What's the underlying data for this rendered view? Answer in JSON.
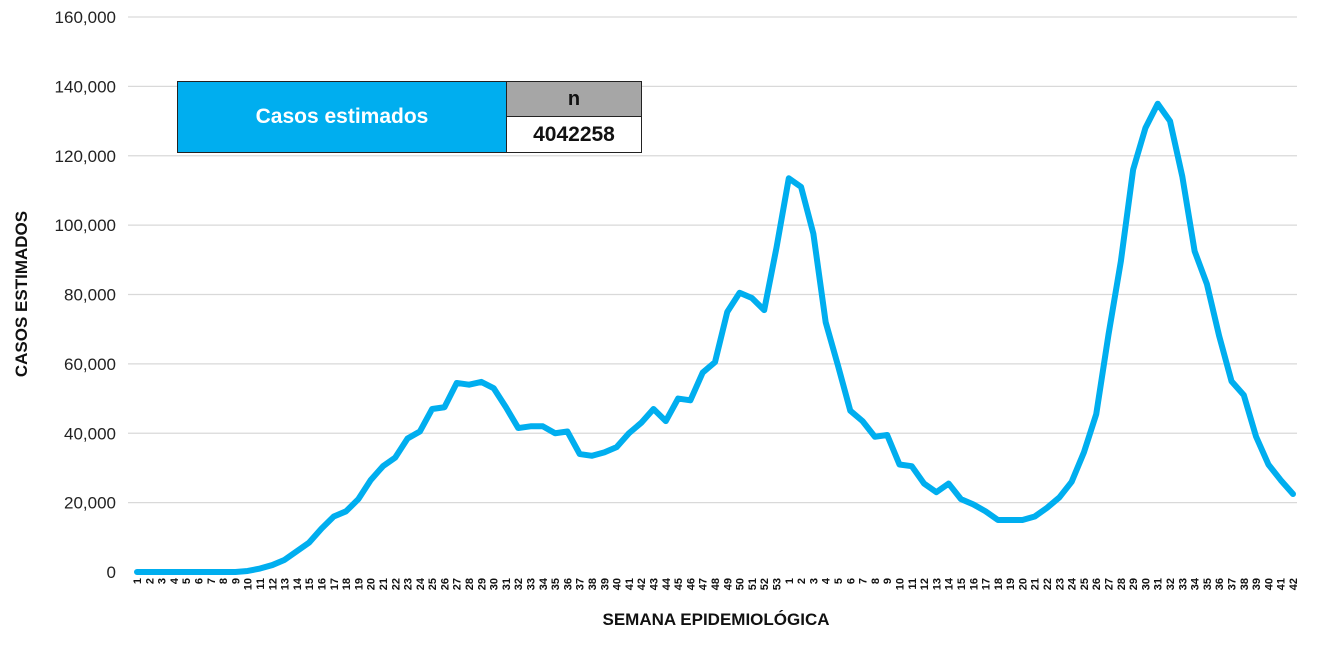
{
  "summary": {
    "label": "Casos estimados",
    "header": "n",
    "value": "4042258"
  },
  "colors": {
    "line": "#00aeef",
    "grid": "#d9d9d9",
    "summary_label_bg": "#00aeef",
    "summary_header_bg": "#a6a6a6"
  },
  "chart_data": {
    "type": "line",
    "xlabel": "SEMANA EPIDEMIOLÓGICA",
    "ylabel": "CASOS ESTIMADOS",
    "ylim": [
      0,
      160000
    ],
    "yticks": [
      0,
      20000,
      40000,
      60000,
      80000,
      100000,
      120000,
      140000,
      160000
    ],
    "ytick_labels": [
      "0",
      "20,000",
      "40,000",
      "60,000",
      "80,000",
      "100,000",
      "120,000",
      "140,000",
      "160,000"
    ],
    "grid": true,
    "categories": [
      "1",
      "2",
      "3",
      "4",
      "5",
      "6",
      "7",
      "8",
      "9",
      "10",
      "11",
      "12",
      "13",
      "14",
      "15",
      "16",
      "17",
      "18",
      "19",
      "20",
      "21",
      "22",
      "23",
      "24",
      "25",
      "26",
      "27",
      "28",
      "29",
      "30",
      "31",
      "32",
      "33",
      "34",
      "35",
      "36",
      "37",
      "38",
      "39",
      "40",
      "41",
      "42",
      "43",
      "44",
      "45",
      "46",
      "47",
      "48",
      "49",
      "50",
      "51",
      "52",
      "53",
      "1",
      "2",
      "3",
      "4",
      "5",
      "6",
      "7",
      "8",
      "9",
      "10",
      "11",
      "12",
      "13",
      "14",
      "15",
      "16",
      "17",
      "18",
      "19",
      "20",
      "21",
      "22",
      "23",
      "24",
      "25",
      "26",
      "27",
      "28",
      "29",
      "30",
      "31",
      "32",
      "33",
      "34",
      "35",
      "36",
      "37",
      "38",
      "39",
      "40",
      "41",
      "42"
    ],
    "series": [
      {
        "values": [
          0,
          0,
          0,
          0,
          0,
          0,
          0,
          0,
          0,
          300,
          1000,
          2000,
          3500,
          6000,
          8500,
          12500,
          16000,
          17500,
          21000,
          26500,
          30500,
          33000,
          38500,
          40500,
          47000,
          47500,
          54500,
          54000,
          54800,
          53000,
          47500,
          41500,
          42000,
          42000,
          40000,
          40500,
          34000,
          33500,
          34500,
          36000,
          40000,
          43000,
          47000,
          43500,
          50000,
          49500,
          57500,
          60500,
          75000,
          80500,
          79000,
          75500,
          93500,
          113500,
          111000,
          97500,
          72000,
          59500,
          46500,
          43500,
          39000,
          39500,
          31000,
          30500,
          25500,
          23000,
          25500,
          21000,
          19500,
          17500,
          15000,
          15000,
          15000,
          16000,
          18500,
          21500,
          26000,
          34500,
          45500,
          68500,
          89500,
          116000,
          128000,
          135000,
          130000,
          114000,
          92500,
          83000,
          68000,
          55000,
          51000,
          39000,
          31000,
          26500,
          22500
        ]
      }
    ]
  }
}
